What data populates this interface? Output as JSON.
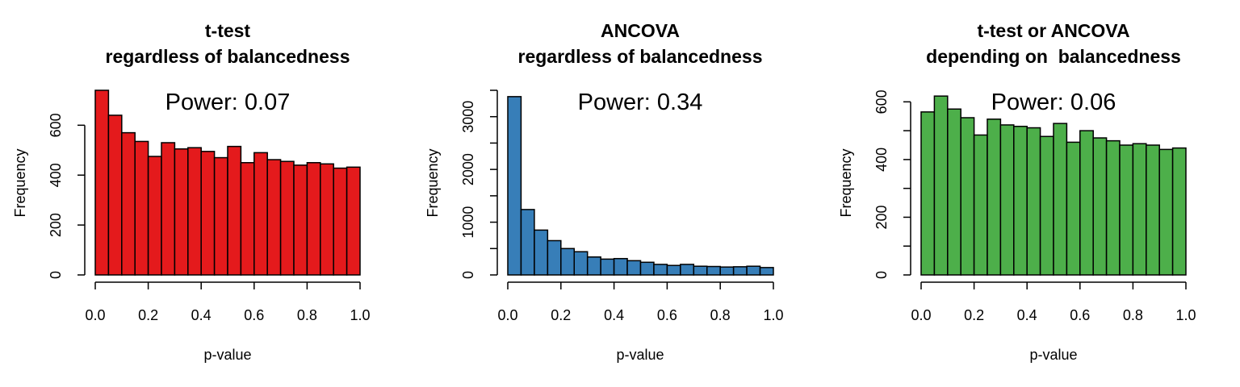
{
  "chart_data": [
    {
      "type": "bar",
      "title": "t-test\nregardless of balancedness",
      "annotation": "Power: 0.07",
      "xlabel": "p-value",
      "ylabel": "Frequency",
      "bin_edges": [
        0,
        0.05,
        0.1,
        0.15,
        0.2,
        0.25,
        0.3,
        0.35,
        0.4,
        0.45,
        0.5,
        0.55,
        0.6,
        0.65,
        0.7,
        0.75,
        0.8,
        0.85,
        0.9,
        0.95,
        1.0
      ],
      "values": [
        740,
        640,
        570,
        535,
        475,
        530,
        505,
        510,
        495,
        470,
        515,
        450,
        490,
        462,
        455,
        440,
        450,
        445,
        428,
        432
      ],
      "xlim": [
        0,
        1
      ],
      "ylim": [
        0,
        740
      ],
      "xticks": [
        0,
        0.2,
        0.4,
        0.6,
        0.8,
        1.0
      ],
      "xtick_labels": [
        "0.0",
        "0.2",
        "0.4",
        "0.6",
        "0.8",
        "1.0"
      ],
      "yticks": [
        0,
        200,
        400,
        600
      ],
      "ytick_labels": [
        "0",
        "200",
        "400",
        "600"
      ],
      "minor_yticks": [],
      "color": "#E41A1C",
      "grid": false
    },
    {
      "type": "bar",
      "title": "ANCOVA\nregardless of balancedness",
      "annotation": "Power: 0.34",
      "xlabel": "p-value",
      "ylabel": "Frequency",
      "bin_edges": [
        0,
        0.05,
        0.1,
        0.15,
        0.2,
        0.25,
        0.3,
        0.35,
        0.4,
        0.45,
        0.5,
        0.55,
        0.6,
        0.65,
        0.7,
        0.75,
        0.8,
        0.85,
        0.9,
        0.95,
        1.0
      ],
      "values": [
        3380,
        1240,
        850,
        650,
        500,
        440,
        340,
        300,
        310,
        270,
        240,
        200,
        180,
        200,
        165,
        160,
        150,
        155,
        165,
        140
      ],
      "xlim": [
        0,
        1
      ],
      "ylim": [
        0,
        3500
      ],
      "xticks": [
        0,
        0.2,
        0.4,
        0.6,
        0.8,
        1.0
      ],
      "xtick_labels": [
        "0.0",
        "0.2",
        "0.4",
        "0.6",
        "0.8",
        "1.0"
      ],
      "yticks": [
        0,
        1000,
        2000,
        3000
      ],
      "ytick_labels": [
        "0",
        "1000",
        "2000",
        "3000"
      ],
      "minor_yticks": [
        500,
        1500,
        2500,
        3500
      ],
      "color": "#377EB8",
      "grid": false
    },
    {
      "type": "bar",
      "title": "t-test or ANCOVA\ndepending on  balancedness",
      "annotation": "Power: 0.06",
      "xlabel": "p-value",
      "ylabel": "Frequency",
      "bin_edges": [
        0,
        0.05,
        0.1,
        0.15,
        0.2,
        0.25,
        0.3,
        0.35,
        0.4,
        0.45,
        0.5,
        0.55,
        0.6,
        0.65,
        0.7,
        0.75,
        0.8,
        0.85,
        0.9,
        0.95,
        1.0
      ],
      "values": [
        565,
        620,
        575,
        545,
        485,
        540,
        520,
        515,
        510,
        480,
        525,
        460,
        500,
        475,
        465,
        450,
        455,
        450,
        435,
        440
      ],
      "xlim": [
        0,
        1
      ],
      "ylim": [
        0,
        640
      ],
      "xticks": [
        0,
        0.2,
        0.4,
        0.6,
        0.8,
        1.0
      ],
      "xtick_labels": [
        "0.0",
        "0.2",
        "0.4",
        "0.6",
        "0.8",
        "1.0"
      ],
      "yticks": [
        0,
        200,
        400,
        600
      ],
      "ytick_labels": [
        "0",
        "200",
        "400",
        "600"
      ],
      "minor_yticks": [
        100,
        300,
        500
      ],
      "color": "#4DAF4A",
      "grid": false
    }
  ]
}
